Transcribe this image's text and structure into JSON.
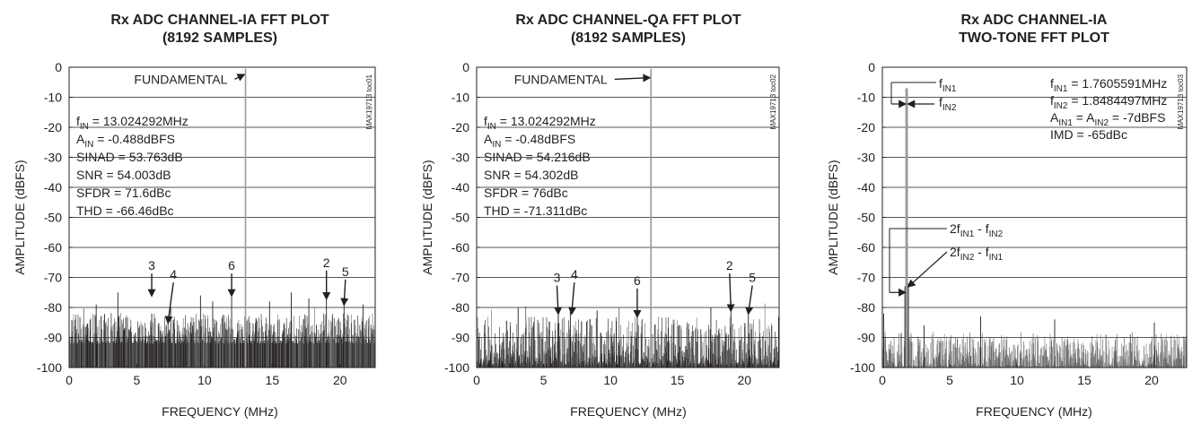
{
  "chart_data": [
    {
      "type": "line",
      "title": [
        "Rx ADC CHANNEL-IA FFT PLOT",
        "(8192 SAMPLES)"
      ],
      "xlabel": "FREQUENCY (MHz)",
      "ylabel": "AMPLITUDE (dBFS)",
      "xlim": [
        0,
        22.6
      ],
      "ylim": [
        -100,
        0
      ],
      "xticks": [
        0,
        5,
        10,
        15,
        20
      ],
      "yticks": [
        0,
        -10,
        -20,
        -30,
        -40,
        -50,
        -60,
        -70,
        -80,
        -90,
        -100
      ],
      "grid": "horizontal",
      "side_label": "MAX19713 toc01",
      "noise_floor": [
        -92,
        -82
      ],
      "series": [
        {
          "x": [
            13.024,
            19.0,
            7.5,
            6.1,
            20.3,
            12.0,
            3.6,
            9.7,
            10.6,
            16.4,
            17.7,
            2.0,
            14.8,
            21.7
          ],
          "y": [
            -0.488,
            -73.0,
            -80.0,
            -82.0,
            -78.0,
            -75.0,
            -75.0,
            -76.0,
            -78.0,
            -75.0,
            -77.0,
            -79.0,
            -78.0,
            -79.0
          ]
        }
      ],
      "annotations": [
        {
          "text": "FUNDAMENTAL",
          "x": 4.8,
          "y": -4,
          "arrow_to": [
            12.9,
            -2.5
          ]
        },
        {
          "text": "3",
          "x": 6.1,
          "y": -66,
          "arrow_to": [
            6.1,
            -76
          ]
        },
        {
          "text": "4",
          "x": 7.7,
          "y": -69,
          "arrow_to": [
            7.3,
            -85
          ]
        },
        {
          "text": "6",
          "x": 12.0,
          "y": -66,
          "arrow_to": [
            12.0,
            -76
          ]
        },
        {
          "text": "2",
          "x": 19.0,
          "y": -65,
          "arrow_to": [
            19.0,
            -77
          ]
        },
        {
          "text": "5",
          "x": 20.4,
          "y": -68,
          "arrow_to": [
            20.3,
            -79
          ]
        }
      ],
      "info": [
        {
          "pre": "f",
          "sub": "IN",
          "post": " = 13.024292MHz"
        },
        {
          "pre": "A",
          "sub": "IN",
          "post": " = -0.488dBFS"
        },
        {
          "pre": "SINAD = 53.763dB"
        },
        {
          "pre": "SNR = 54.003dB"
        },
        {
          "pre": "SFDR = 71.6dBc"
        },
        {
          "pre": "THD = -66.46dBc"
        }
      ]
    },
    {
      "type": "line",
      "title": [
        "Rx ADC CHANNEL-QA FFT PLOT",
        "(8192 SAMPLES)"
      ],
      "xlabel": "FREQUENCY (MHz)",
      "ylabel": "AMPLITUDE (dBFS)",
      "xlim": [
        0,
        22.6
      ],
      "ylim": [
        -100,
        0
      ],
      "xticks": [
        0,
        5,
        10,
        15,
        20
      ],
      "yticks": [
        0,
        -10,
        -20,
        -30,
        -40,
        -50,
        -60,
        -70,
        -80,
        -90,
        -100
      ],
      "grid": "horizontal",
      "side_label": "MAX19713 toc02",
      "noise_floor": [
        -99,
        -83
      ],
      "series": [
        {
          "x": [
            13.024,
            19.0,
            7.0,
            6.1,
            20.3,
            12.0,
            3.1,
            17.5,
            9.0
          ],
          "y": [
            -0.48,
            -78.0,
            -81.0,
            -82.0,
            -81.0,
            -82.0,
            -80.0,
            -80.0,
            -81.0
          ]
        }
      ],
      "annotations": [
        {
          "text": "FUNDAMENTAL",
          "x": 2.8,
          "y": -4,
          "arrow_to": [
            12.9,
            -3.5
          ]
        },
        {
          "text": "3",
          "x": 6.0,
          "y": -70,
          "arrow_to": [
            6.1,
            -82
          ]
        },
        {
          "text": "4",
          "x": 7.3,
          "y": -69,
          "arrow_to": [
            7.1,
            -82
          ]
        },
        {
          "text": "6",
          "x": 12.0,
          "y": -71,
          "arrow_to": [
            12.0,
            -83
          ]
        },
        {
          "text": "2",
          "x": 18.9,
          "y": -66,
          "arrow_to": [
            19.0,
            -81
          ]
        },
        {
          "text": "5",
          "x": 20.6,
          "y": -70,
          "arrow_to": [
            20.3,
            -82
          ]
        }
      ],
      "info": [
        {
          "pre": "f",
          "sub": "IN",
          "post": " = 13.024292MHz"
        },
        {
          "pre": "A",
          "sub": "IN",
          "post": " = -0.48dBFS"
        },
        {
          "pre": "SINAD = 54.216dB"
        },
        {
          "pre": "SNR = 54.302dB"
        },
        {
          "pre": "SFDR = 76dBc"
        },
        {
          "pre": "THD = -71.311dBc"
        }
      ]
    },
    {
      "type": "line",
      "title": [
        "Rx ADC CHANNEL-IA",
        "TWO-TONE FFT PLOT"
      ],
      "xlabel": "FREQUENCY (MHz)",
      "ylabel": "AMPLITUDE (dBFS)",
      "xlim": [
        0,
        22.6
      ],
      "ylim": [
        -100,
        0
      ],
      "xticks": [
        0,
        5,
        10,
        15,
        20
      ],
      "yticks": [
        0,
        -10,
        -20,
        -30,
        -40,
        -50,
        -60,
        -70,
        -80,
        -90,
        -100
      ],
      "grid": "horizontal",
      "side_label": "MAX19713 toc03",
      "noise_floor": [
        -100,
        -88
      ],
      "series": [
        {
          "x": [
            1.7605591,
            1.8484497,
            1.673,
            1.936,
            0.1,
            7.3,
            12.8,
            20.2,
            3.1
          ],
          "y": [
            -7.0,
            -7.0,
            -73.0,
            -72.0,
            -82.0,
            -83.0,
            -84.0,
            -85.0,
            -86.0
          ]
        }
      ],
      "annotations": [
        {
          "text": "2f_IN1 - f_IN2",
          "x": 4.8,
          "y": -54,
          "arrow_to": [
            1.67,
            -76
          ]
        },
        {
          "text": "2f_IN2 - f_IN1",
          "x": 4.8,
          "y": -61,
          "arrow_to": [
            1.95,
            -74
          ]
        }
      ],
      "info": [
        {
          "pre": "f",
          "sub": "IN1",
          "post": " = 1.7605591MHz"
        },
        {
          "pre": "f",
          "sub": "IN2",
          "post": " = 1.8484497MHz"
        },
        {
          "pre": "A",
          "sub": "IN1",
          "post": " = A",
          "sub2": "IN2",
          "post2": " = -7dBFS"
        },
        {
          "pre": "IMD = -65dBc"
        }
      ],
      "tone_labels": [
        {
          "pre": "f",
          "sub": "IN1"
        },
        {
          "pre": "f",
          "sub": "IN2"
        }
      ],
      "imd_labels": [
        {
          "a": "2f",
          "asub": "IN1",
          "b": " - f",
          "bsub": "IN2"
        },
        {
          "a": "2f",
          "asub": "IN2",
          "b": " - f",
          "bsub": "IN1"
        }
      ]
    }
  ]
}
